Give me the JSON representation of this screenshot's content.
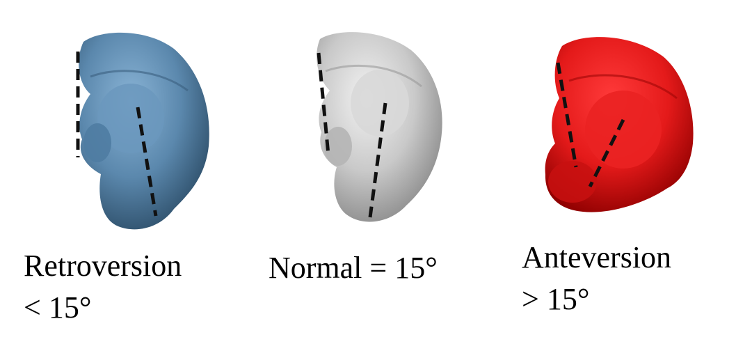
{
  "figures": [
    {
      "id": "retroversion",
      "caption_line1": "Retroversion",
      "caption_line2": "< 15°",
      "color": "#5b88ad"
    },
    {
      "id": "normal",
      "caption_line1": "Normal = 15°",
      "caption_line2": "",
      "color": "#c9c9c9"
    },
    {
      "id": "anteversion",
      "caption_line1": "Anteversion",
      "caption_line2": "> 15°",
      "color": "#e41a1a"
    }
  ],
  "reference_line": {
    "style": "dashed",
    "color": "#111111"
  }
}
